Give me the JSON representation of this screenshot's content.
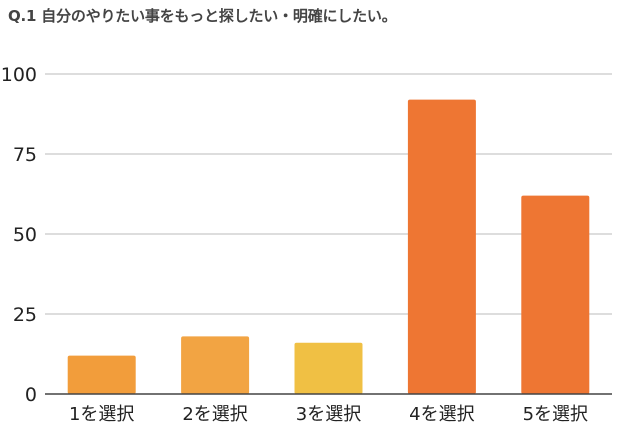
{
  "chart_data": {
    "type": "bar",
    "title": "Q.1 自分のやりたい事をもっと探したい・明確にしたい。",
    "xlabel": "",
    "ylabel": "",
    "categories": [
      "1を選択",
      "2を選択",
      "3を選択",
      "4を選択",
      "5を選択"
    ],
    "values": [
      12,
      18,
      16,
      92,
      62
    ],
    "bar_colors": [
      "#f29d3b",
      "#f2a443",
      "#f0c044",
      "#ee7633",
      "#ee7633"
    ],
    "ylim": [
      0,
      100
    ],
    "yticks": [
      0,
      25,
      50,
      75,
      100
    ],
    "grid": true,
    "grid_color": "#bbbbbb",
    "axis_color": "#444444",
    "legend": "none"
  }
}
